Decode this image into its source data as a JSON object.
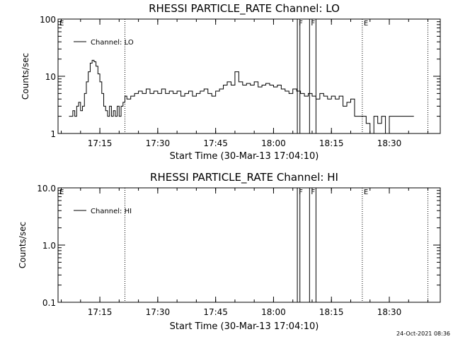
{
  "footer": {
    "date": "24-Oct-2021 08:36"
  },
  "chart_data": [
    {
      "type": "line",
      "title": "RHESSI PARTICLE_RATE Channel: LO",
      "xlabel": "Start Time (30-Mar-13 17:04:10)",
      "ylabel": "Counts/sec",
      "xlim_min": [
        7,
        67
      ],
      "yscale": "log",
      "ylim": [
        1,
        100
      ],
      "yticks": [
        "1",
        "10",
        "100"
      ],
      "xticks": [
        "17:15",
        "17:30",
        "17:45",
        "18:00",
        "18:15",
        "18:30"
      ],
      "legend": {
        "entry": "Channel: LO",
        "position": "top-left"
      },
      "markers": [
        {
          "label": "E",
          "time": "17:04:10",
          "style": "none"
        },
        {
          "label": "",
          "time": "17:21:30",
          "style": "dotted"
        },
        {
          "label": "F",
          "time": "18:06:10",
          "style": "solid"
        },
        {
          "label": "F",
          "time": "18:09:20",
          "style": "solid"
        },
        {
          "label": "E",
          "time": "18:23:00",
          "style": "dotted"
        },
        {
          "label": "",
          "time": "18:40:00",
          "style": "dotted"
        }
      ],
      "solid_lines_extra": [
        "18:06:50",
        "18:11:00"
      ],
      "series": [
        {
          "x_min": [
            7,
            8,
            8.5,
            9,
            9.5,
            10,
            10.5,
            11,
            11.5,
            12,
            12.5,
            13,
            13.5,
            14,
            14.5,
            15,
            15.5,
            16,
            16.5,
            17,
            17.5,
            18,
            18.5,
            19,
            19.5,
            20,
            20.5,
            21,
            21.5,
            22,
            23,
            24,
            25,
            26,
            27,
            28,
            29,
            30,
            31,
            32,
            33,
            34,
            35,
            36,
            37,
            38,
            39,
            40,
            41,
            42,
            43,
            44,
            45,
            46,
            47,
            48,
            49,
            50,
            51,
            52,
            53,
            54,
            55,
            56,
            57,
            58,
            59,
            60,
            61,
            62,
            63,
            64,
            65,
            66,
            67,
            68,
            69,
            70,
            71,
            72,
            73,
            74,
            75,
            76,
            77,
            78,
            79,
            80,
            81,
            82,
            83,
            84,
            85,
            86,
            87,
            88,
            89,
            90,
            91,
            92,
            93,
            94,
            95,
            96
          ],
          "values": [
            2,
            2.5,
            2,
            3,
            3.5,
            2.5,
            3,
            5,
            8,
            12,
            17,
            19,
            18,
            15,
            11,
            8,
            5,
            3,
            2.5,
            2,
            3,
            2,
            2.5,
            2,
            3,
            2,
            3,
            3.5,
            4.5,
            4,
            4.5,
            5,
            5.5,
            5,
            6,
            5,
            5.5,
            5,
            6,
            5,
            5.5,
            5,
            5.5,
            4.5,
            5,
            5.5,
            4.5,
            5,
            5.5,
            6,
            5,
            4.5,
            5.5,
            6,
            7,
            8,
            7,
            12,
            8,
            7,
            7.5,
            7,
            8,
            6.5,
            7,
            7.5,
            7,
            6.5,
            7,
            6,
            5.5,
            5,
            6,
            5.5,
            5,
            4.5,
            5,
            4.5,
            4,
            5,
            4.5,
            4,
            4.5,
            4,
            4.5,
            3,
            3.5,
            4,
            2,
            2,
            2,
            1.5,
            1,
            2,
            1.5,
            2,
            1,
            2,
            2,
            2,
            2,
            2,
            2,
            2
          ]
        }
      ]
    },
    {
      "type": "line",
      "title": "RHESSI PARTICLE_RATE Channel: HI",
      "xlabel": "Start Time (30-Mar-13 17:04:10)",
      "ylabel": "Counts/sec",
      "yscale": "log",
      "ylim": [
        0.1,
        10
      ],
      "yticks": [
        "0.1",
        "1.0",
        "10.0"
      ],
      "xticks": [
        "17:15",
        "17:30",
        "17:45",
        "18:00",
        "18:15",
        "18:30"
      ],
      "legend": {
        "entry": "Channel: HI",
        "position": "top-left"
      },
      "markers": [
        {
          "label": "E",
          "time": "17:04:10",
          "style": "none"
        },
        {
          "label": "",
          "time": "17:21:30",
          "style": "dotted"
        },
        {
          "label": "F",
          "time": "18:06:10",
          "style": "solid"
        },
        {
          "label": "F",
          "time": "18:09:20",
          "style": "solid"
        },
        {
          "label": "E",
          "time": "18:23:00",
          "style": "dotted"
        },
        {
          "label": "",
          "time": "18:40:00",
          "style": "dotted"
        }
      ],
      "solid_lines_extra": [
        "18:06:50",
        "18:11:00"
      ],
      "series": [
        {
          "x_min": [],
          "values": []
        }
      ]
    }
  ]
}
